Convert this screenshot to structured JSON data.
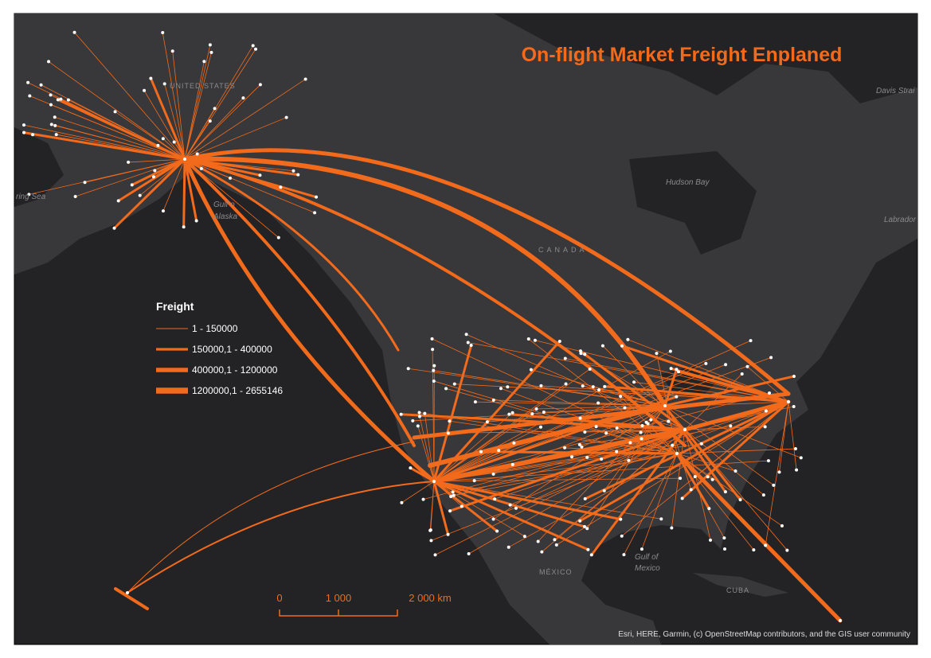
{
  "title": "On-flight Market Freight Enplaned",
  "legend": {
    "title": "Freight",
    "items": [
      "1 - 150000",
      "150000,1 - 400000",
      "400000,1 - 1200000",
      "1200000,1 - 2655146"
    ]
  },
  "scale_bar": {
    "labels": [
      "0",
      "1 000",
      "2 000 km"
    ]
  },
  "place_labels": {
    "united_states": "UNITED STATES",
    "bering_sea": "ring Sea",
    "gulf_of_alaska_1": "Gulf o",
    "gulf_of_alaska_2": "Alaska",
    "hudson_bay": "Hudson Bay",
    "canada": "C A N A D A",
    "labrador": "Labrador",
    "davis_strait": "Davis Strai",
    "gulf_of_mexico_1": "Gulf of",
    "gulf_of_mexico_2": "Mexico",
    "mexico": "MÉXICO",
    "cuba": "CUBA"
  },
  "attribution": "Esri, HERE, Garmin, (c) OpenStreetMap contributors, and the GIS user community"
}
